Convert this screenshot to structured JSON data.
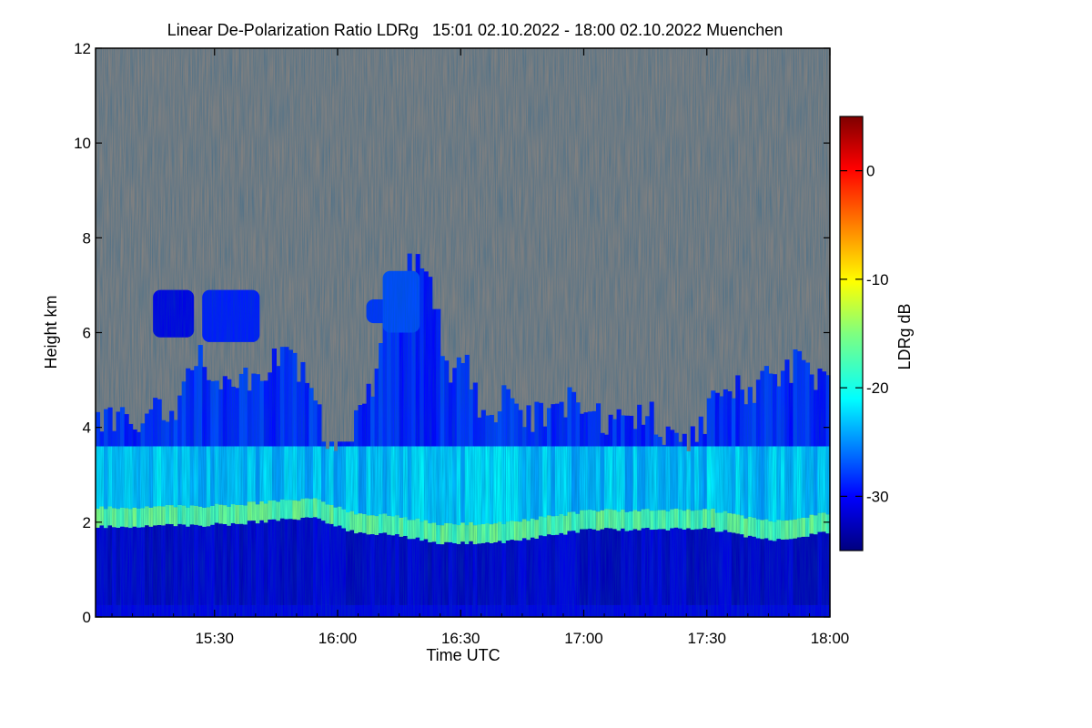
{
  "chart_data": {
    "type": "heatmap",
    "title": "Linear De-Polarization Ratio LDRg   15:01 02.10.2022 - 18:00 02.10.2022 Muenchen",
    "xlabel": "Time UTC",
    "ylabel": "Height km",
    "xlim": [
      "15:01",
      "18:00"
    ],
    "ylim": [
      0,
      12
    ],
    "x_ticks": [
      "15:30",
      "16:00",
      "16:30",
      "17:00",
      "17:30",
      "18:00"
    ],
    "y_ticks": [
      0,
      2,
      4,
      6,
      8,
      10,
      12
    ],
    "colorbar": {
      "label": "LDRg dB",
      "range": [
        -35,
        5
      ],
      "ticks": [
        0,
        -10,
        -20,
        -30
      ]
    },
    "colors": {
      "no_signal": "#808080",
      "colormap": [
        "#00007f",
        "#0000ff",
        "#007fff",
        "#00ffff",
        "#7fff7f",
        "#ffff00",
        "#ff7f00",
        "#ff0000",
        "#7f0000"
      ]
    }
  }
}
